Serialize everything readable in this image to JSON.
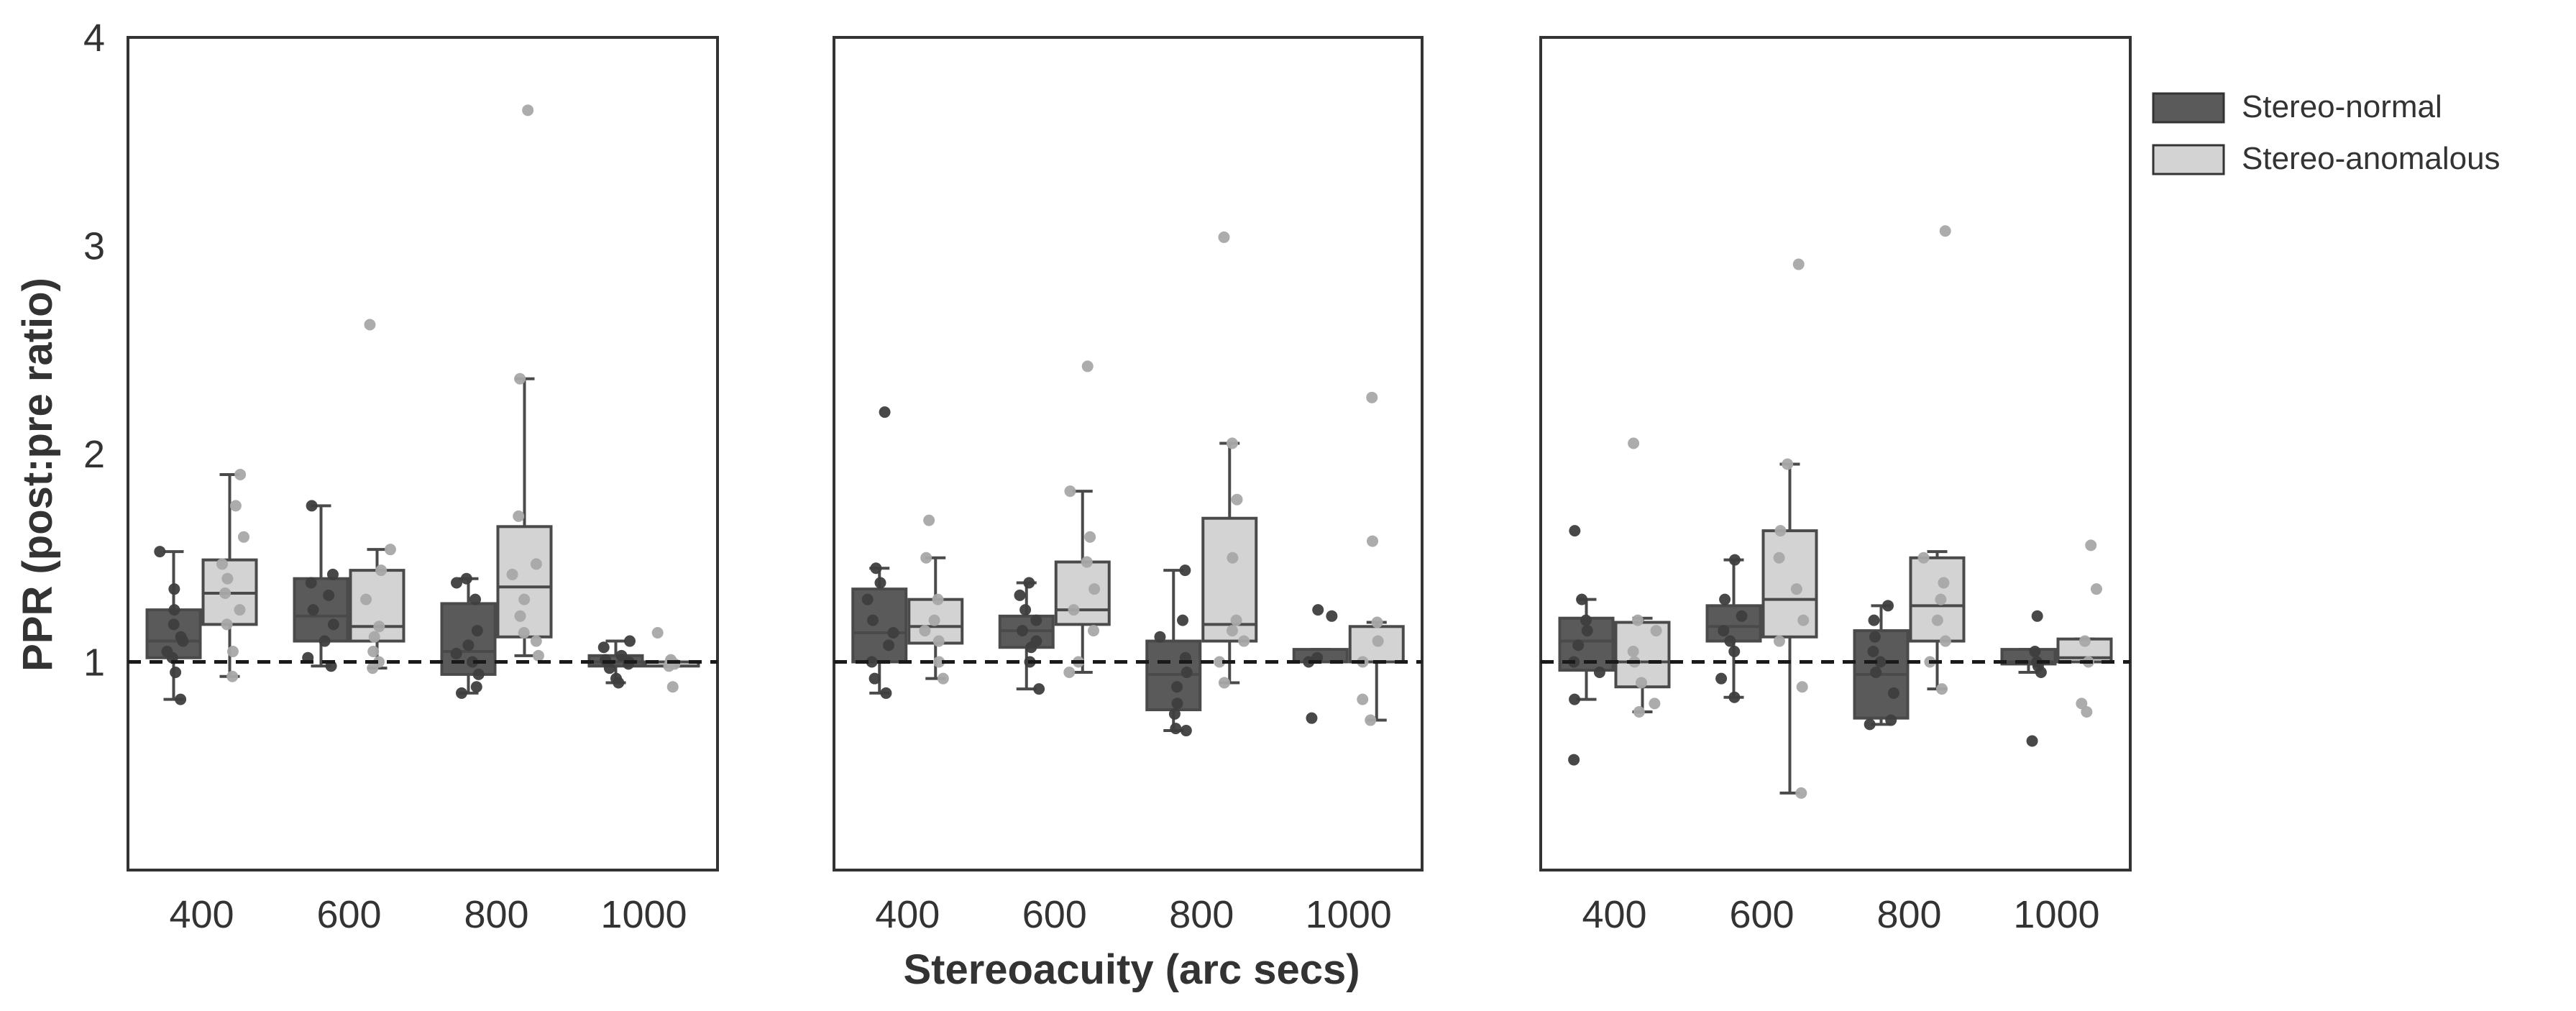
{
  "chart_data": {
    "type": "box",
    "ylabel": "PPR (post:pre ratio)",
    "xlabel": "Stereoacuity (arc secs)",
    "yticks": [
      "1",
      "2",
      "3",
      "4"
    ],
    "ylim": [
      0,
      4
    ],
    "reference_line": 1,
    "categories": [
      "400",
      "600",
      "800",
      "1000"
    ],
    "legend": {
      "position": "top-right",
      "items": [
        {
          "name": "Stereo-normal",
          "color": "#5a5a5a"
        },
        {
          "name": "Stereo-anomalous",
          "color": "#d3d3d3"
        }
      ]
    },
    "panels": [
      {
        "normal": [
          {
            "q1": 1.02,
            "median": 1.1,
            "q3": 1.25,
            "wlo": 0.82,
            "whi": 1.53,
            "pts": [
              0.82,
              0.95,
              1.02,
              1.05,
              1.1,
              1.12,
              1.18,
              1.25,
              1.35,
              1.53
            ]
          },
          {
            "q1": 1.1,
            "median": 1.22,
            "q3": 1.4,
            "wlo": 0.98,
            "whi": 1.75,
            "pts": [
              0.98,
              1.02,
              1.1,
              1.18,
              1.25,
              1.32,
              1.38,
              1.42,
              1.75
            ]
          },
          {
            "q1": 0.94,
            "median": 1.05,
            "q3": 1.28,
            "wlo": 0.85,
            "whi": 1.4,
            "pts": [
              0.85,
              0.88,
              0.94,
              1.0,
              1.04,
              1.08,
              1.15,
              1.3,
              1.38,
              1.4
            ]
          },
          {
            "q1": 0.98,
            "median": 1.0,
            "q3": 1.03,
            "wlo": 0.9,
            "whi": 1.1,
            "pts": [
              0.9,
              0.92,
              0.97,
              0.99,
              1.0,
              1.01,
              1.03,
              1.07,
              1.1
            ]
          }
        ],
        "anomalous": [
          {
            "q1": 1.18,
            "median": 1.33,
            "q3": 1.49,
            "wlo": 0.93,
            "whi": 1.9,
            "pts": [
              0.93,
              1.05,
              1.18,
              1.25,
              1.33,
              1.4,
              1.47,
              1.6,
              1.75,
              1.9
            ]
          },
          {
            "q1": 1.1,
            "median": 1.17,
            "q3": 1.44,
            "wlo": 0.97,
            "whi": 1.54,
            "pts": [
              0.97,
              1.0,
              1.05,
              1.12,
              1.17,
              1.3,
              1.44,
              1.54,
              2.62
            ]
          },
          {
            "q1": 1.12,
            "median": 1.36,
            "q3": 1.65,
            "wlo": 1.03,
            "whi": 2.36,
            "pts": [
              1.03,
              1.1,
              1.14,
              1.22,
              1.3,
              1.42,
              1.47,
              1.7,
              2.36,
              3.65
            ]
          },
          {
            "q1": 0.98,
            "median": 1.0,
            "q3": 1.0,
            "wlo": 0.98,
            "whi": 1.0,
            "pts": [
              0.88,
              0.98,
              0.99,
              1.0,
              1.01,
              1.14
            ]
          }
        ]
      },
      {
        "normal": [
          {
            "q1": 1.0,
            "median": 1.14,
            "q3": 1.35,
            "wlo": 0.85,
            "whi": 1.45,
            "pts": [
              0.85,
              0.92,
              1.0,
              1.08,
              1.14,
              1.2,
              1.3,
              1.38,
              1.45,
              2.2
            ]
          },
          {
            "q1": 1.07,
            "median": 1.15,
            "q3": 1.22,
            "wlo": 0.87,
            "whi": 1.38,
            "pts": [
              0.87,
              1.0,
              1.07,
              1.1,
              1.15,
              1.2,
              1.25,
              1.32,
              1.38
            ]
          },
          {
            "q1": 0.77,
            "median": 0.94,
            "q3": 1.1,
            "wlo": 0.67,
            "whi": 1.44,
            "pts": [
              0.67,
              0.68,
              0.75,
              0.8,
              0.88,
              0.95,
              1.02,
              1.12,
              1.2,
              1.44
            ]
          },
          {
            "q1": 1.0,
            "median": 1.0,
            "q3": 1.06,
            "wlo": 1.0,
            "whi": 1.06,
            "pts": [
              0.73,
              1.0,
              1.02,
              1.22,
              1.25
            ]
          }
        ],
        "anomalous": [
          {
            "q1": 1.09,
            "median": 1.17,
            "q3": 1.3,
            "wlo": 0.92,
            "whi": 1.5,
            "pts": [
              0.92,
              1.0,
              1.1,
              1.15,
              1.2,
              1.3,
              1.5,
              1.68
            ]
          },
          {
            "q1": 1.18,
            "median": 1.25,
            "q3": 1.48,
            "wlo": 0.95,
            "whi": 1.82,
            "pts": [
              0.95,
              1.0,
              1.15,
              1.25,
              1.35,
              1.48,
              1.6,
              1.82,
              2.42
            ]
          },
          {
            "q1": 1.1,
            "median": 1.18,
            "q3": 1.69,
            "wlo": 0.9,
            "whi": 2.05,
            "pts": [
              0.9,
              1.0,
              1.1,
              1.15,
              1.2,
              1.5,
              1.78,
              2.05,
              3.04
            ]
          },
          {
            "q1": 1.0,
            "median": 1.0,
            "q3": 1.17,
            "wlo": 0.72,
            "whi": 1.19,
            "pts": [
              0.72,
              0.82,
              1.0,
              1.1,
              1.19,
              1.58,
              2.27
            ]
          }
        ]
      },
      {
        "normal": [
          {
            "q1": 0.96,
            "median": 1.1,
            "q3": 1.21,
            "wlo": 0.82,
            "whi": 1.3,
            "pts": [
              0.53,
              0.82,
              0.95,
              1.0,
              1.08,
              1.15,
              1.2,
              1.3,
              1.63
            ]
          },
          {
            "q1": 1.1,
            "median": 1.17,
            "q3": 1.27,
            "wlo": 0.83,
            "whi": 1.49,
            "pts": [
              0.83,
              0.92,
              1.05,
              1.1,
              1.15,
              1.22,
              1.3,
              1.49
            ]
          },
          {
            "q1": 0.73,
            "median": 0.94,
            "q3": 1.15,
            "wlo": 0.7,
            "whi": 1.27,
            "pts": [
              0.7,
              0.72,
              0.85,
              0.95,
              1.0,
              1.05,
              1.12,
              1.2,
              1.27
            ]
          },
          {
            "q1": 0.99,
            "median": 1.0,
            "q3": 1.06,
            "wlo": 0.95,
            "whi": 1.06,
            "pts": [
              0.62,
              0.95,
              0.98,
              1.0,
              1.05,
              1.22
            ]
          }
        ],
        "anomalous": [
          {
            "q1": 0.88,
            "median": 1.0,
            "q3": 1.19,
            "wlo": 0.76,
            "whi": 1.21,
            "pts": [
              0.76,
              0.8,
              0.9,
              1.0,
              1.05,
              1.15,
              1.2,
              2.05
            ]
          },
          {
            "q1": 1.12,
            "median": 1.3,
            "q3": 1.63,
            "wlo": 0.37,
            "whi": 1.95,
            "pts": [
              0.37,
              0.88,
              1.1,
              1.2,
              1.35,
              1.5,
              1.63,
              1.95,
              2.91
            ]
          },
          {
            "q1": 1.1,
            "median": 1.27,
            "q3": 1.5,
            "wlo": 0.87,
            "whi": 1.53,
            "pts": [
              0.87,
              1.0,
              1.1,
              1.2,
              1.3,
              1.38,
              1.5,
              3.07
            ]
          },
          {
            "q1": 1.0,
            "median": 1.02,
            "q3": 1.11,
            "wlo": 1.0,
            "whi": 1.11,
            "pts": [
              0.76,
              0.8,
              1.0,
              1.1,
              1.35,
              1.56
            ]
          }
        ]
      }
    ]
  }
}
